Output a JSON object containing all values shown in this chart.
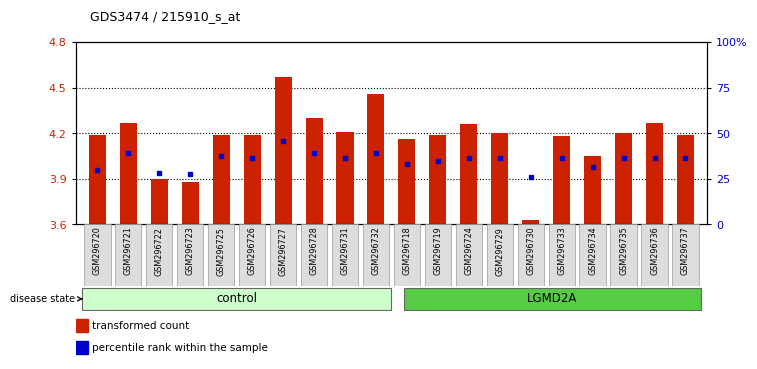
{
  "title": "GDS3474 / 215910_s_at",
  "samples": [
    "GSM296720",
    "GSM296721",
    "GSM296722",
    "GSM296723",
    "GSM296725",
    "GSM296726",
    "GSM296727",
    "GSM296728",
    "GSM296731",
    "GSM296732",
    "GSM296718",
    "GSM296719",
    "GSM296724",
    "GSM296729",
    "GSM296730",
    "GSM296733",
    "GSM296734",
    "GSM296735",
    "GSM296736",
    "GSM296737"
  ],
  "bar_values": [
    4.19,
    4.27,
    3.9,
    3.88,
    4.19,
    4.19,
    4.57,
    4.3,
    4.21,
    4.46,
    4.16,
    4.19,
    4.26,
    4.2,
    3.63,
    4.18,
    4.05,
    4.2,
    4.27,
    4.19
  ],
  "percentile_values": [
    3.96,
    4.07,
    3.94,
    3.93,
    4.05,
    4.04,
    4.15,
    4.07,
    4.04,
    4.07,
    4.0,
    4.02,
    4.04,
    4.04,
    3.91,
    4.04,
    3.98,
    4.04,
    4.04,
    4.04
  ],
  "ymin": 3.6,
  "ymax": 4.8,
  "yticks": [
    3.6,
    3.9,
    4.2,
    4.5,
    4.8
  ],
  "ytick_labels": [
    "3.6",
    "3.9",
    "4.2",
    "4.5",
    "4.8"
  ],
  "grid_yticks": [
    3.9,
    4.2,
    4.5
  ],
  "right_yticks": [
    0,
    25,
    50,
    75,
    100
  ],
  "right_ytick_labels": [
    "0",
    "25",
    "50",
    "75",
    "100%"
  ],
  "bar_color": "#cc2200",
  "dot_color": "#0000cc",
  "background_color": "#ffffff",
  "control_color": "#ccffcc",
  "lgmd2a_color": "#55cc44",
  "right_axis_color": "#0000cc",
  "left_axis_color": "#cc2200",
  "control_label": "control",
  "lgmd2a_label": "LGMD2A",
  "disease_state_label": "disease state",
  "legend1": "transformed count",
  "legend2": "percentile rank within the sample",
  "n_control": 10,
  "n_lgmd2a": 10
}
